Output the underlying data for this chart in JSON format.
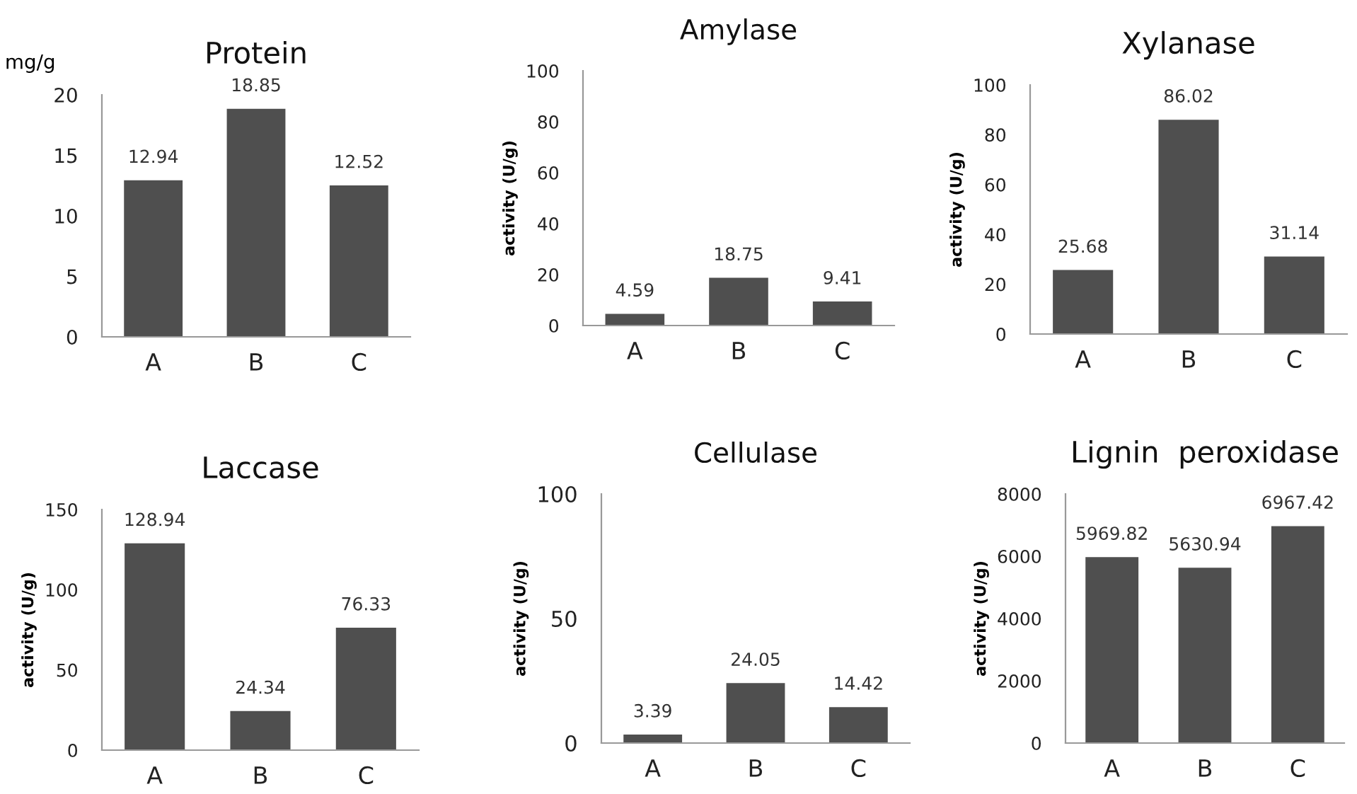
{
  "chart_data": [
    {
      "type": "bar",
      "title": "Protein",
      "ylabel": "mg/g",
      "categories": [
        "A",
        "B",
        "C"
      ],
      "values": [
        12.94,
        18.85,
        12.52
      ],
      "color": "#4f4f4f",
      "ylim": [
        0,
        20
      ],
      "yticks": [
        0,
        5,
        10,
        15,
        20
      ],
      "data_labels": true,
      "grid": false,
      "legend": false
    },
    {
      "type": "bar",
      "title": "Amylase",
      "ylabel": "activity (U/g)",
      "categories": [
        "A",
        "B",
        "C"
      ],
      "values": [
        4.59,
        18.75,
        9.41
      ],
      "color": "#4f4f4f",
      "ylim": [
        0,
        100
      ],
      "yticks": [
        0,
        20,
        40,
        60,
        80,
        100
      ],
      "data_labels": true,
      "grid": false,
      "legend": false
    },
    {
      "type": "bar",
      "title": "Xylanase",
      "ylabel": "activity (U/g)",
      "categories": [
        "A",
        "B",
        "C"
      ],
      "values": [
        25.68,
        86.02,
        31.14
      ],
      "color": "#4f4f4f",
      "ylim": [
        0,
        100
      ],
      "yticks": [
        0,
        20,
        40,
        60,
        80,
        100
      ],
      "data_labels": true,
      "grid": false,
      "legend": false
    },
    {
      "type": "bar",
      "title": "Laccase",
      "ylabel": "activity (U/g)",
      "categories": [
        "A",
        "B",
        "C"
      ],
      "values": [
        128.94,
        24.34,
        76.33
      ],
      "color": "#4f4f4f",
      "ylim": [
        0,
        150
      ],
      "yticks": [
        0,
        50,
        100,
        150
      ],
      "data_labels": true,
      "grid": false,
      "legend": false
    },
    {
      "type": "bar",
      "title": "Cellulase",
      "ylabel": "activity (U/g)",
      "categories": [
        "A",
        "B",
        "C"
      ],
      "values": [
        3.39,
        24.05,
        14.42
      ],
      "color": "#4f4f4f",
      "ylim": [
        0,
        100
      ],
      "yticks": [
        0,
        50,
        100
      ],
      "data_labels": true,
      "grid": false,
      "legend": false
    },
    {
      "type": "bar",
      "title": "Lignin  peroxidase",
      "ylabel": "activity (U/g)",
      "categories": [
        "A",
        "B",
        "C"
      ],
      "values": [
        5969.82,
        5630.94,
        6967.42
      ],
      "color": "#4f4f4f",
      "ylim": [
        0,
        8000
      ],
      "yticks": [
        0,
        2000,
        4000,
        6000,
        8000
      ],
      "data_labels": true,
      "grid": false,
      "legend": false
    }
  ]
}
